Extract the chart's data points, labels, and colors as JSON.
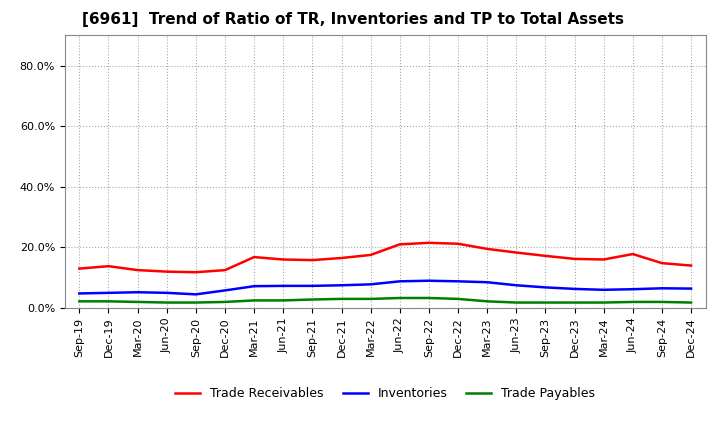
{
  "title": "[6961]  Trend of Ratio of TR, Inventories and TP to Total Assets",
  "x_labels": [
    "Sep-19",
    "Dec-19",
    "Mar-20",
    "Jun-20",
    "Sep-20",
    "Dec-20",
    "Mar-21",
    "Jun-21",
    "Sep-21",
    "Dec-21",
    "Mar-22",
    "Jun-22",
    "Sep-22",
    "Dec-22",
    "Mar-23",
    "Jun-23",
    "Sep-23",
    "Dec-23",
    "Mar-24",
    "Jun-24",
    "Sep-24",
    "Dec-24"
  ],
  "trade_receivables": [
    0.13,
    0.138,
    0.125,
    0.12,
    0.118,
    0.125,
    0.168,
    0.16,
    0.158,
    0.165,
    0.175,
    0.21,
    0.215,
    0.212,
    0.195,
    0.183,
    0.172,
    0.162,
    0.16,
    0.178,
    0.148,
    0.14
  ],
  "inventories": [
    0.048,
    0.05,
    0.052,
    0.05,
    0.045,
    0.058,
    0.072,
    0.073,
    0.073,
    0.075,
    0.078,
    0.088,
    0.09,
    0.088,
    0.085,
    0.075,
    0.068,
    0.063,
    0.06,
    0.062,
    0.065,
    0.064
  ],
  "trade_payables": [
    0.022,
    0.022,
    0.02,
    0.018,
    0.018,
    0.02,
    0.025,
    0.025,
    0.028,
    0.03,
    0.03,
    0.033,
    0.033,
    0.03,
    0.022,
    0.018,
    0.018,
    0.018,
    0.018,
    0.02,
    0.02,
    0.018
  ],
  "tr_color": "#ff0000",
  "inv_color": "#0000ff",
  "tp_color": "#008000",
  "ylim": [
    0.0,
    0.9
  ],
  "yticks": [
    0.0,
    0.2,
    0.4,
    0.6,
    0.8
  ],
  "legend_tr": "Trade Receivables",
  "legend_inv": "Inventories",
  "legend_tp": "Trade Payables",
  "bg_color": "#ffffff",
  "plot_bg_color": "#ffffff",
  "grid_color": "#aaaaaa",
  "title_fontsize": 11,
  "tick_fontsize": 8,
  "legend_fontsize": 9,
  "linewidth": 1.8
}
